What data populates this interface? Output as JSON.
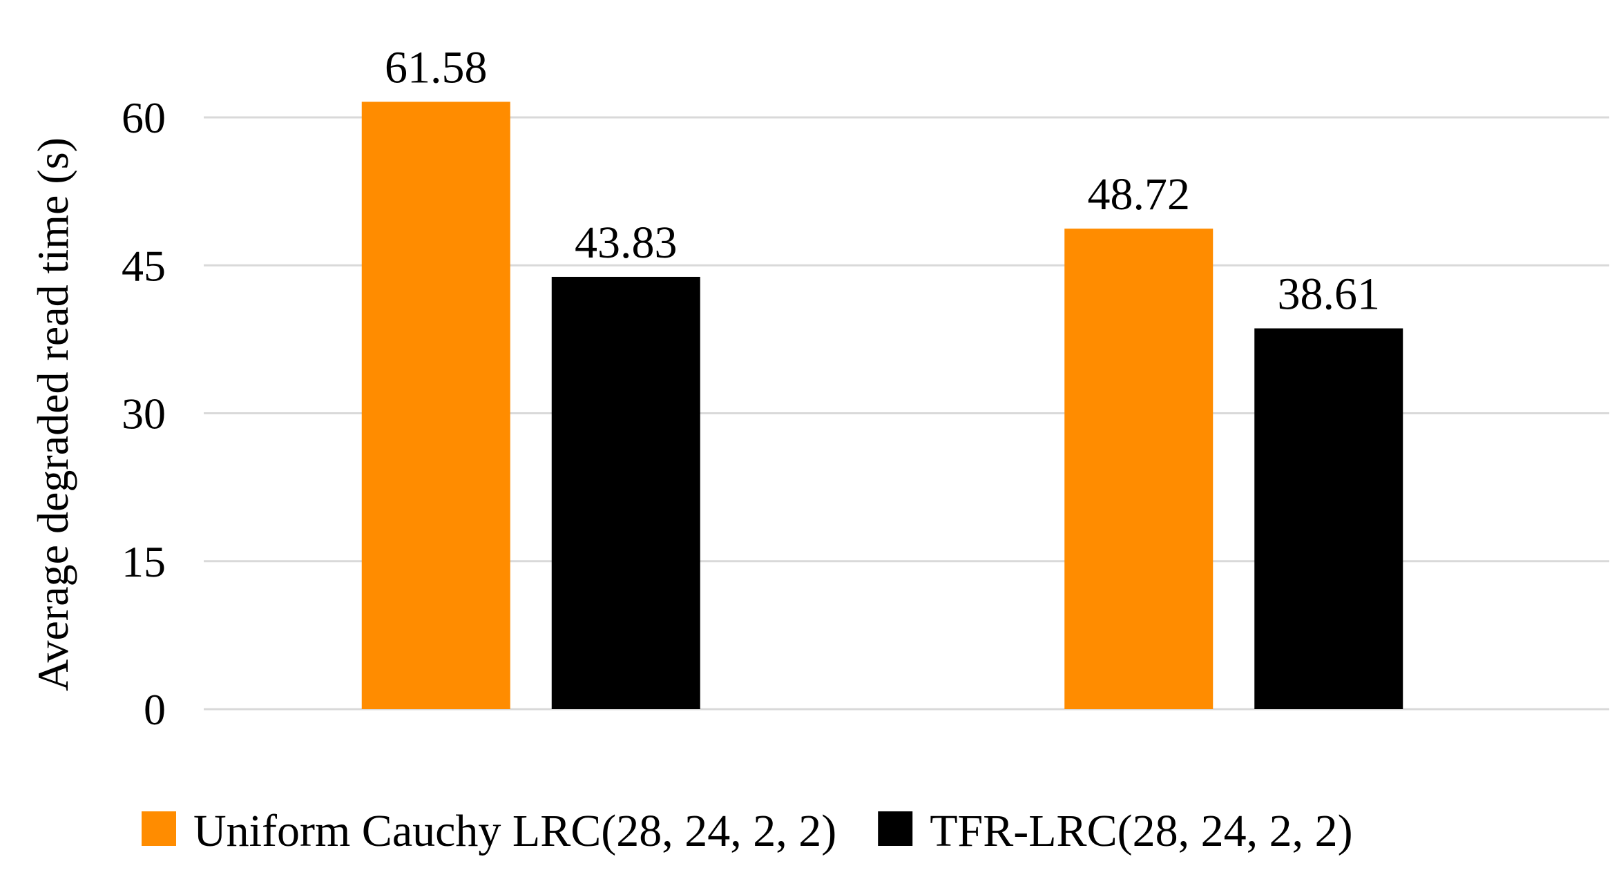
{
  "chart_data": {
    "type": "bar",
    "title": "",
    "xlabel": "",
    "ylabel": "Average degraded read time (s)",
    "categories": [
      "",
      ""
    ],
    "ylim": [
      0,
      60
    ],
    "yticks": [
      0,
      15,
      30,
      45,
      60
    ],
    "grid": true,
    "legend_position": "bottom",
    "series": [
      {
        "name": "Uniform Cauchy LRC(28, 24, 2, 2)",
        "color": "#ff8c00",
        "values": [
          61.58,
          48.72
        ],
        "labels": [
          "61.58",
          "48.72"
        ]
      },
      {
        "name": "TFR-LRC(28, 24, 2, 2)",
        "color": "#000000",
        "values": [
          43.83,
          38.61
        ],
        "labels": [
          "43.83",
          "38.61"
        ]
      }
    ]
  }
}
